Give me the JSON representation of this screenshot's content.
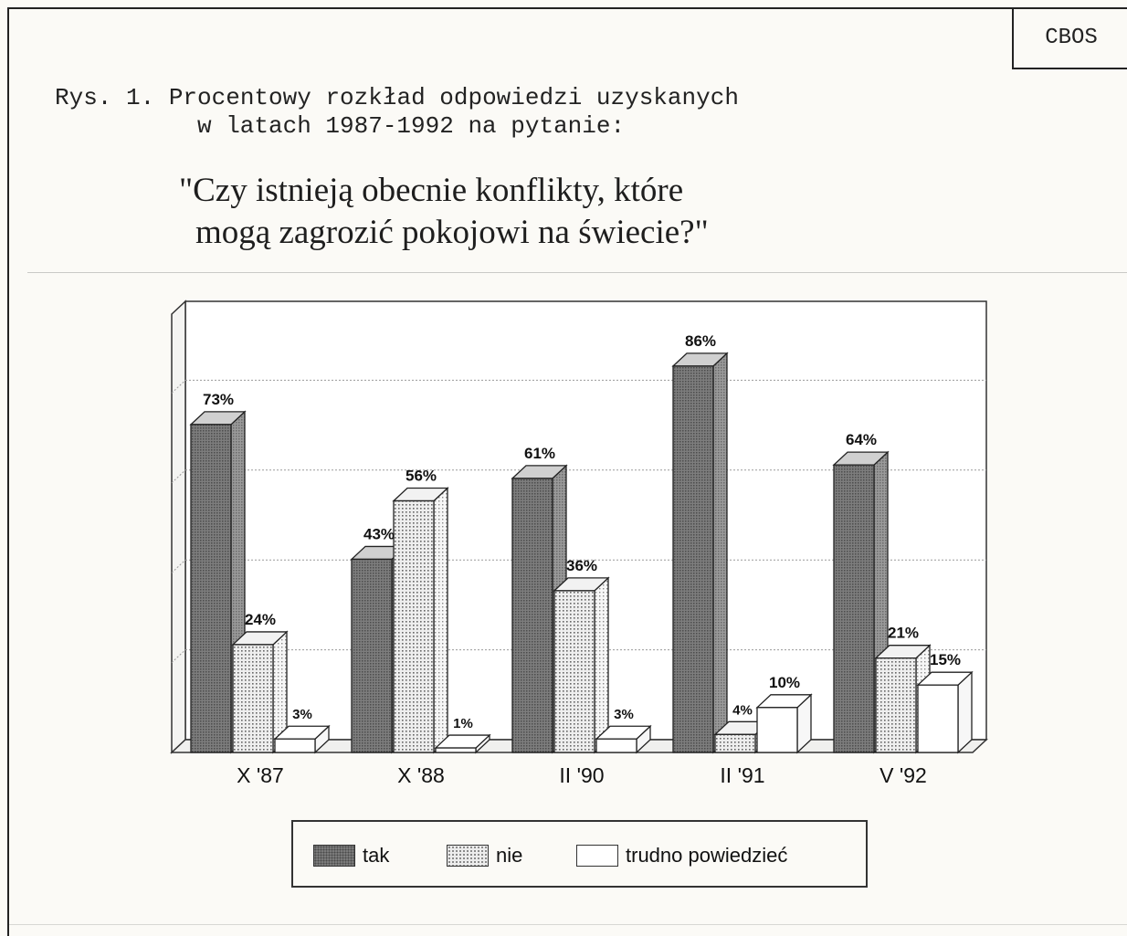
{
  "header": {
    "badge": "CBOS",
    "caption_line1": "Rys. 1. Procentowy rozkład odpowiedzi uzyskanych",
    "caption_line2": "w latach 1987-1992 na pytanie:",
    "question_line1": "\"Czy istnieją obecnie konflikty, które",
    "question_line2": "mogą zagrozić pokojowi na świecie?\""
  },
  "chart_data": {
    "type": "bar",
    "title": "",
    "xlabel": "",
    "ylabel": "",
    "ylim": [
      0,
      100
    ],
    "grid": true,
    "legend_position": "bottom",
    "categories": [
      "X '87",
      "X '88",
      "II '90",
      "II '91",
      "V '92"
    ],
    "series": [
      {
        "name": "tak",
        "values": [
          73,
          43,
          61,
          86,
          64
        ],
        "labels": [
          "73%",
          "43%",
          "61%",
          "86%",
          "64%"
        ],
        "pattern": "dense-dots",
        "color": "#7a7a7a"
      },
      {
        "name": "nie",
        "values": [
          24,
          56,
          36,
          4,
          21
        ],
        "labels": [
          "24%",
          "56%",
          "36%",
          "4%",
          "21%"
        ],
        "pattern": "fine-dots",
        "color": "#ececec"
      },
      {
        "name": "trudno powiedzieć",
        "values": [
          3,
          1,
          3,
          10,
          15
        ],
        "labels": [
          "3%",
          "1%",
          "3%",
          "10%",
          "15%"
        ],
        "pattern": "none",
        "color": "#ffffff"
      }
    ]
  }
}
